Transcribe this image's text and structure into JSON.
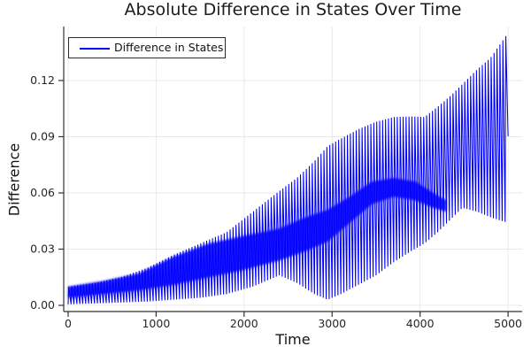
{
  "title": "Absolute Difference in States Over Time",
  "legend": {
    "label": "Difference in States",
    "line_color": "#0000ff"
  },
  "axes": {
    "x_label": "Time",
    "y_label": "Difference",
    "x_tick_labels": [
      "0",
      "1000",
      "2000",
      "3000",
      "4000",
      "5000"
    ],
    "y_tick_labels": [
      "0.00",
      "0.03",
      "0.06",
      "0.09",
      "0.12"
    ]
  },
  "colors": {
    "series_blue": "#0000ff",
    "grid": "#e9e9e9",
    "spine": "#333333",
    "tick_label": "#262626",
    "background": "#ffffff"
  },
  "chart_data": {
    "type": "line",
    "title": "Absolute Difference in States Over Time",
    "xlabel": "Time",
    "ylabel": "Difference",
    "xlim": [
      -50,
      5160
    ],
    "ylim": [
      -0.0033,
      0.1488
    ],
    "x_ticks": [
      0,
      1000,
      2000,
      3000,
      4000,
      5000
    ],
    "x_tick_labels": [
      "0",
      "1000",
      "2000",
      "3000",
      "4000",
      "5000"
    ],
    "y_ticks": [
      0.0,
      0.03,
      0.06,
      0.09,
      0.12
    ],
    "y_tick_labels": [
      "0.00",
      "0.03",
      "0.06",
      "0.09",
      "0.12"
    ],
    "grid": true,
    "legend_position": "top-left",
    "series": [
      {
        "name": "Difference in States",
        "color": "#0000ff",
        "style": "absolute difference of two oscillating states: ~150 rapid oscillations between a lower and upper envelope, with a denser beat band",
        "oscillation_count": 150,
        "envelope_t": [
          0,
          300,
          600,
          900,
          1200,
          1500,
          1800,
          2100,
          2400,
          2600,
          2800,
          2950,
          3100,
          3300,
          3500,
          3700,
          3900,
          4050,
          4200,
          4350,
          4480,
          4650,
          4800,
          5000
        ],
        "envelope_min": [
          0.0005,
          0.001,
          0.0015,
          0.002,
          0.003,
          0.004,
          0.006,
          0.01,
          0.016,
          0.012,
          0.006,
          0.003,
          0.006,
          0.011,
          0.016,
          0.023,
          0.029,
          0.033,
          0.039,
          0.046,
          0.052,
          0.05,
          0.047,
          0.044
        ],
        "envelope_max": [
          0.01,
          0.012,
          0.015,
          0.02,
          0.027,
          0.033,
          0.039,
          0.05,
          0.061,
          0.068,
          0.077,
          0.085,
          0.089,
          0.094,
          0.098,
          0.1005,
          0.1008,
          0.1005,
          0.106,
          0.112,
          0.118,
          0.126,
          0.132,
          0.1455
        ],
        "dense_band_t": [
          0,
          400,
          800,
          1200,
          1600,
          2000,
          2400,
          2700,
          2950,
          3200,
          3450,
          3700,
          3950,
          4150,
          4300
        ],
        "dense_band_min": [
          0.004,
          0.006,
          0.008,
          0.011,
          0.015,
          0.019,
          0.024,
          0.029,
          0.034,
          0.044,
          0.054,
          0.058,
          0.056,
          0.052,
          0.05
        ],
        "dense_band_max": [
          0.01,
          0.013,
          0.017,
          0.026,
          0.033,
          0.037,
          0.041,
          0.047,
          0.051,
          0.058,
          0.066,
          0.068,
          0.066,
          0.06,
          0.056
        ]
      }
    ]
  }
}
